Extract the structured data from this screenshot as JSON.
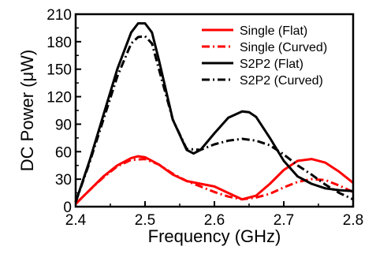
{
  "chart_data": {
    "type": "line",
    "xlabel": "Frequency (GHz)",
    "ylabel": "DC Power (μW)",
    "xlim": [
      2.4,
      2.8
    ],
    "ylim": [
      0,
      210
    ],
    "xticks": [
      "2.4",
      "2.5",
      "2.6",
      "2.7",
      "2.8"
    ],
    "yticks": [
      "0",
      "30",
      "60",
      "90",
      "120",
      "150",
      "180",
      "210"
    ],
    "legend_position": "top-right",
    "grid": false,
    "series": [
      {
        "name": "Single (Flat)",
        "color": "#ff0000",
        "style": "solid",
        "x": [
          2.4,
          2.42,
          2.44,
          2.46,
          2.48,
          2.49,
          2.5,
          2.52,
          2.54,
          2.56,
          2.58,
          2.6,
          2.62,
          2.64,
          2.66,
          2.68,
          2.7,
          2.72,
          2.74,
          2.76,
          2.78,
          2.8
        ],
        "y": [
          3,
          18,
          33,
          45,
          53,
          55,
          54,
          46,
          35,
          28,
          25,
          22,
          15,
          8,
          12,
          25,
          40,
          50,
          52,
          48,
          38,
          26
        ]
      },
      {
        "name": "Single (Curved)",
        "color": "#ff0000",
        "style": "dashdot",
        "x": [
          2.4,
          2.42,
          2.44,
          2.46,
          2.48,
          2.5,
          2.52,
          2.54,
          2.56,
          2.58,
          2.6,
          2.62,
          2.64,
          2.66,
          2.68,
          2.7,
          2.72,
          2.74,
          2.76,
          2.78,
          2.8
        ],
        "y": [
          3,
          18,
          32,
          44,
          51,
          52,
          46,
          36,
          28,
          22,
          16,
          11,
          8,
          10,
          14,
          21,
          27,
          30,
          29,
          23,
          16
        ]
      },
      {
        "name": "S2P2 (Flat)",
        "color": "#000000",
        "style": "solid",
        "x": [
          2.4,
          2.42,
          2.44,
          2.46,
          2.48,
          2.49,
          2.5,
          2.51,
          2.52,
          2.54,
          2.56,
          2.57,
          2.58,
          2.6,
          2.62,
          2.64,
          2.65,
          2.66,
          2.68,
          2.7,
          2.72,
          2.74,
          2.76,
          2.78,
          2.8
        ],
        "y": [
          5,
          50,
          100,
          150,
          190,
          200,
          200,
          190,
          160,
          95,
          62,
          58,
          62,
          80,
          97,
          104,
          103,
          98,
          75,
          50,
          33,
          25,
          20,
          18,
          17
        ]
      },
      {
        "name": "S2P2 (Curved)",
        "color": "#000000",
        "style": "dashdot",
        "x": [
          2.4,
          2.42,
          2.44,
          2.46,
          2.48,
          2.49,
          2.5,
          2.51,
          2.52,
          2.54,
          2.56,
          2.58,
          2.6,
          2.62,
          2.64,
          2.66,
          2.68,
          2.7,
          2.72,
          2.74,
          2.76,
          2.78,
          2.8
        ],
        "y": [
          5,
          48,
          95,
          142,
          178,
          185,
          186,
          178,
          150,
          95,
          63,
          62,
          68,
          72,
          74,
          72,
          67,
          57,
          45,
          35,
          24,
          15,
          8
        ]
      }
    ]
  }
}
